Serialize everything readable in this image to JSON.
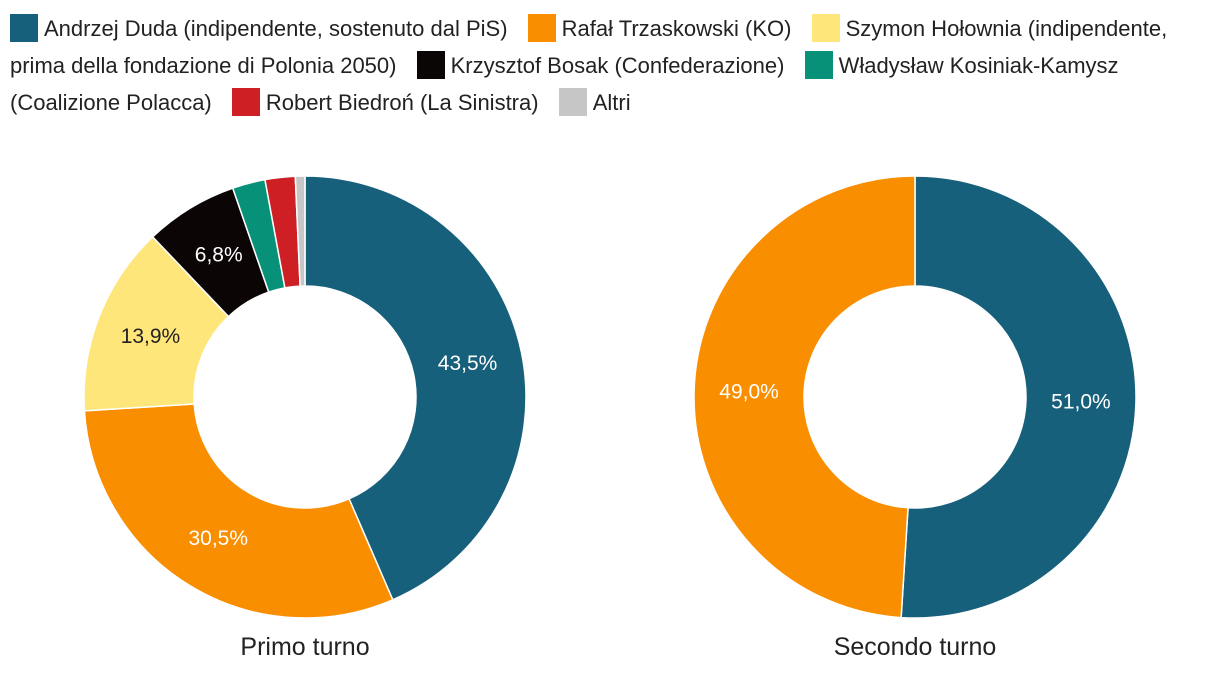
{
  "chart_data": [
    {
      "type": "pie",
      "subtype": "donut",
      "title": "Primo turno",
      "slices": [
        {
          "name": "Andrzej Duda (indipendente, sostenuto dal PiS)",
          "value": 43.5,
          "label": "43,5%",
          "color": "#17607b",
          "label_color": "#ffffff"
        },
        {
          "name": "Rafał Trzaskowski (KO)",
          "value": 30.5,
          "label": "30,5%",
          "color": "#f98e00",
          "label_color": "#ffffff"
        },
        {
          "name": "Szymon Hołownia (indipendente, prima della fondazione di Polonia 2050)",
          "value": 13.9,
          "label": "13,9%",
          "color": "#fee67a",
          "label_color": "#222222"
        },
        {
          "name": "Krzysztof Bosak (Confederazione)",
          "value": 6.8,
          "label": "6,8%",
          "color": "#0b0506",
          "label_color": "#ffffff"
        },
        {
          "name": "Władysław Kosiniak-Kamysz (Coalizione Polacca)",
          "value": 2.4,
          "label": "",
          "color": "#079179",
          "label_color": "#ffffff"
        },
        {
          "name": "Robert Biedroń (La Sinistra)",
          "value": 2.2,
          "label": "",
          "color": "#cd1f24",
          "label_color": "#ffffff"
        },
        {
          "name": "Altri",
          "value": 0.7,
          "label": "",
          "color": "#c6c6c6",
          "label_color": "#222222"
        }
      ]
    },
    {
      "type": "pie",
      "subtype": "donut",
      "title": "Secondo turno",
      "slices": [
        {
          "name": "Andrzej Duda (indipendente, sostenuto dal PiS)",
          "value": 51.0,
          "label": "51,0%",
          "color": "#17607b",
          "label_color": "#ffffff"
        },
        {
          "name": "Rafał Trzaskowski (KO)",
          "value": 49.0,
          "label": "49,0%",
          "color": "#f98e00",
          "label_color": "#ffffff"
        }
      ]
    }
  ],
  "legend": [
    {
      "label": "Andrzej Duda (indipendente, sostenuto dal PiS)",
      "color": "#17607b"
    },
    {
      "label": "Rafał Trzaskowski (KO)",
      "color": "#f98e00"
    },
    {
      "label": "Szymon Hołownia (indipendente, prima della fondazione di Polonia 2050)",
      "color": "#fee67a"
    },
    {
      "label": "Krzysztof Bosak (Confederazione)",
      "color": "#0b0506"
    },
    {
      "label": "Władysław Kosiniak-Kamysz (Coalizione Polacca)",
      "color": "#079179"
    },
    {
      "label": "Robert Biedroń (La Sinistra)",
      "color": "#cd1f24"
    },
    {
      "label": "Altri",
      "color": "#c6c6c6"
    }
  ]
}
